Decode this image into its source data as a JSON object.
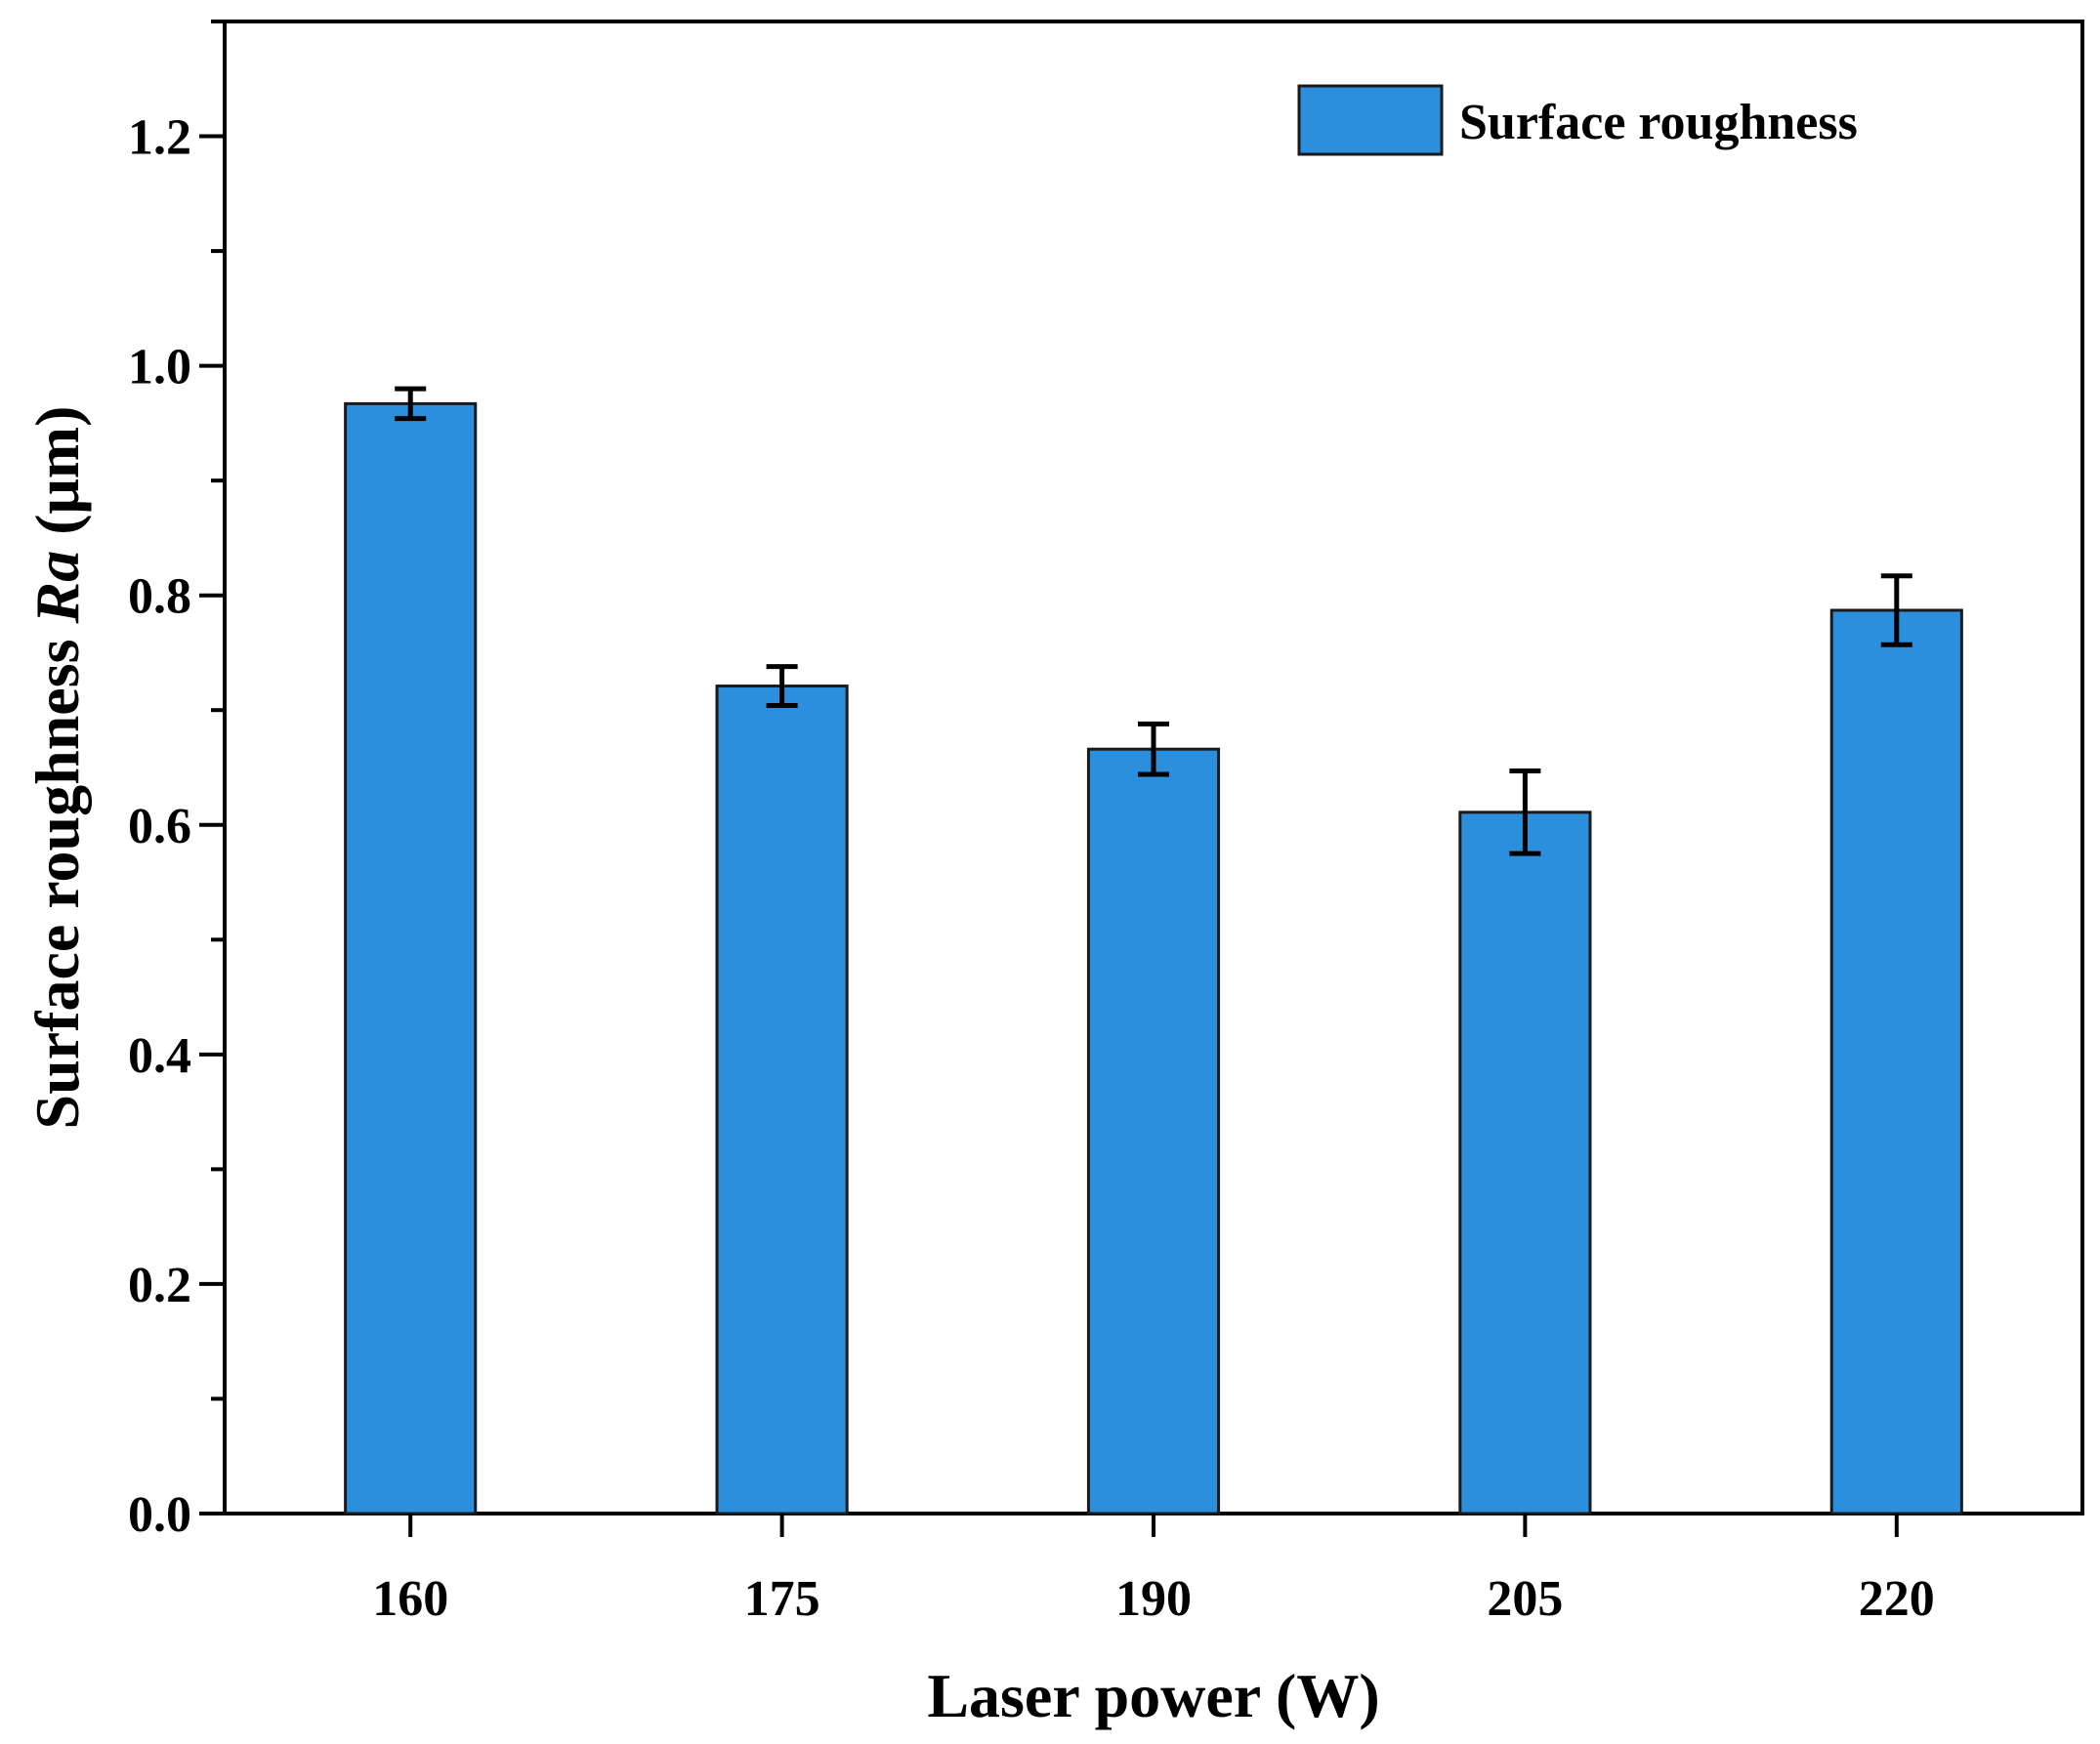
{
  "chart_data": {
    "type": "bar",
    "title": "",
    "xlabel": "Laser power (W)",
    "ylabel_main": "Surface roughness ",
    "ylabel_italic": "Ra",
    "ylabel_unit": " (μm)",
    "ylim": [
      0.0,
      1.3
    ],
    "yticks": [
      0.0,
      0.2,
      0.4,
      0.6,
      0.8,
      1.0,
      1.2
    ],
    "ytick_labels": [
      "0.0",
      "0.2",
      "0.4",
      "0.6",
      "0.8",
      "1.0",
      "1.2"
    ],
    "categories": [
      "160",
      "175",
      "190",
      "205",
      "220"
    ],
    "series": [
      {
        "name": "Surface roughness",
        "values": [
          0.967,
          0.721,
          0.666,
          0.611,
          0.787
        ],
        "errors": [
          0.013,
          0.017,
          0.022,
          0.036,
          0.03
        ],
        "color": "#2b8fde"
      }
    ],
    "legend": {
      "position": "top-right",
      "label": "Surface roughness"
    },
    "grid": false
  }
}
